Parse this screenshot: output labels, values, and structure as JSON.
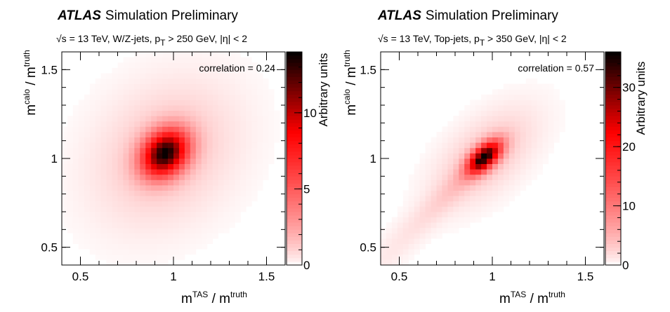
{
  "chart_data": [
    {
      "type": "heatmap",
      "title_bold": "ATLAS",
      "title_rest": "Simulation Preliminary",
      "subtitle_sqrt": "√s",
      "subtitle_mid": " = 13 TeV, W/Z-jets, p",
      "subtitle_sub": "T",
      "subtitle_end": " > 250 GeV, |η| < 2",
      "xlabel": {
        "base1": "m",
        "sup1": "TAS",
        "sep": " / m",
        "sup2": "truth"
      },
      "ylabel": {
        "base1": "m",
        "sup1": "calo",
        "sep": " / m",
        "sup2": "truth"
      },
      "zlabel": "Arbitrary units",
      "annotation": "correlation = 0.24",
      "xlim": [
        0.4,
        1.6
      ],
      "ylim": [
        0.4,
        1.6
      ],
      "zlim": [
        0,
        14
      ],
      "xticks": [
        "0.5",
        "1",
        "1.5"
      ],
      "yticks": [
        "0.5",
        "1",
        "1.5"
      ],
      "zticks": [
        "0",
        "5",
        "10"
      ],
      "xtick_values": [
        0.5,
        1.0,
        1.5
      ],
      "ytick_values": [
        0.5,
        1.0,
        1.5
      ],
      "ztick_values": [
        0,
        5,
        10
      ],
      "peak": {
        "x": 0.955,
        "y": 1.03,
        "value": 14
      },
      "correlation": 0.24,
      "spread": {
        "sx": 0.085,
        "sy": 0.09,
        "tail": 0.0
      }
    },
    {
      "type": "heatmap",
      "title_bold": "ATLAS",
      "title_rest": "Simulation Preliminary",
      "subtitle_sqrt": "√s",
      "subtitle_mid": " = 13 TeV, Top-jets, p",
      "subtitle_sub": "T",
      "subtitle_end": " > 350 GeV, |η| < 2",
      "xlabel": {
        "base1": "m",
        "sup1": "TAS",
        "sep": " / m",
        "sup2": "truth"
      },
      "ylabel": {
        "base1": "m",
        "sup1": "calo",
        "sep": " / m",
        "sup2": "truth"
      },
      "zlabel": "Arbitrary units",
      "annotation": "correlation = 0.57",
      "xlim": [
        0.4,
        1.6
      ],
      "ylim": [
        0.4,
        1.6
      ],
      "zlim": [
        0,
        36
      ],
      "xticks": [
        "0.5",
        "1",
        "1.5"
      ],
      "yticks": [
        "0.5",
        "1",
        "1.5"
      ],
      "zticks": [
        "0",
        "10",
        "20",
        "30"
      ],
      "xtick_values": [
        0.5,
        1.0,
        1.5
      ],
      "ytick_values": [
        0.5,
        1.0,
        1.5
      ],
      "ztick_values": [
        0,
        10,
        20,
        30
      ],
      "peak": {
        "x": 0.96,
        "y": 1.01,
        "value": 36
      },
      "correlation": 0.57,
      "spread": {
        "sx": 0.06,
        "sy": 0.06,
        "tail": 1.0
      }
    }
  ],
  "colors": {
    "low": "#ffffff",
    "mid": "#ff0000",
    "high": "#000000"
  }
}
